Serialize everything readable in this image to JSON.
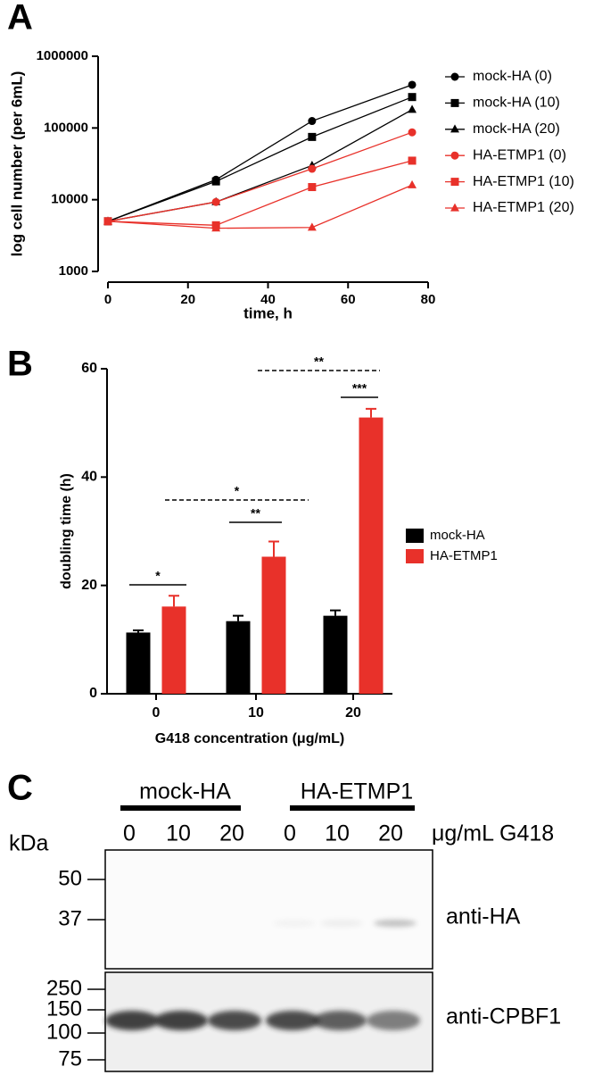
{
  "chart_data": [
    {
      "type": "line",
      "panel": "A",
      "y_label": "log cell number (per 6mL)",
      "x_label": "time, h",
      "log_y": true,
      "xlim": [
        0,
        80
      ],
      "xticks": [
        0,
        20,
        40,
        60,
        80
      ],
      "ylim": [
        1000,
        1000000
      ],
      "yticks": [
        1000,
        10000,
        100000,
        1000000
      ],
      "x": [
        0,
        27,
        51,
        76
      ],
      "series": [
        {
          "name": "mock-HA (0)",
          "color": "#000000",
          "marker": "circle",
          "values": [
            5000,
            19000,
            125000,
            400000
          ]
        },
        {
          "name": "mock-HA (10)",
          "color": "#000000",
          "marker": "square",
          "values": [
            5000,
            18000,
            75000,
            270000
          ]
        },
        {
          "name": "mock-HA (20)",
          "color": "#000000",
          "marker": "triangle",
          "values": [
            5000,
            9300,
            30000,
            180000
          ]
        },
        {
          "name": "HA-ETMP1 (0)",
          "color": "#e8312a",
          "marker": "circle",
          "values": [
            5000,
            9300,
            27000,
            87000
          ]
        },
        {
          "name": "HA-ETMP1 (10)",
          "color": "#e8312a",
          "marker": "square",
          "values": [
            5000,
            4400,
            15000,
            35000
          ]
        },
        {
          "name": "HA-ETMP1 (20)",
          "color": "#e8312a",
          "marker": "triangle",
          "values": [
            5000,
            4000,
            4100,
            16000
          ]
        }
      ]
    },
    {
      "type": "bar",
      "panel": "B",
      "y_label": "doubling time (h)",
      "x_label": "G418 concentration (μg/mL)",
      "categories": [
        "0",
        "10",
        "20"
      ],
      "ylim": [
        0,
        60
      ],
      "yticks": [
        0,
        20,
        40,
        60
      ],
      "series": [
        {
          "name": "mock-HA",
          "color": "#000000",
          "values": [
            11.3,
            13.4,
            14.4
          ],
          "errors": [
            0.4,
            1.0,
            1.0
          ]
        },
        {
          "name": "HA-ETMP1",
          "color": "#e8312a",
          "values": [
            16.1,
            25.3,
            51.0
          ],
          "errors": [
            2.0,
            2.8,
            1.6
          ]
        }
      ],
      "annotations": [
        "*",
        "*",
        "**",
        "**",
        "***"
      ]
    }
  ],
  "blot": {
    "panel": "C",
    "kda_label": "kDa",
    "unit_label": "μg/mL G418",
    "groups": [
      {
        "name": "mock-HA",
        "lanes": [
          "0",
          "10",
          "20"
        ]
      },
      {
        "name": "HA-ETMP1",
        "lanes": [
          "0",
          "10",
          "20"
        ]
      }
    ],
    "top": {
      "label": "anti-HA",
      "markers": [
        "50",
        "37"
      ]
    },
    "bottom": {
      "label": "anti-CPBF1",
      "markers": [
        "250",
        "150",
        "100",
        "75"
      ]
    }
  }
}
